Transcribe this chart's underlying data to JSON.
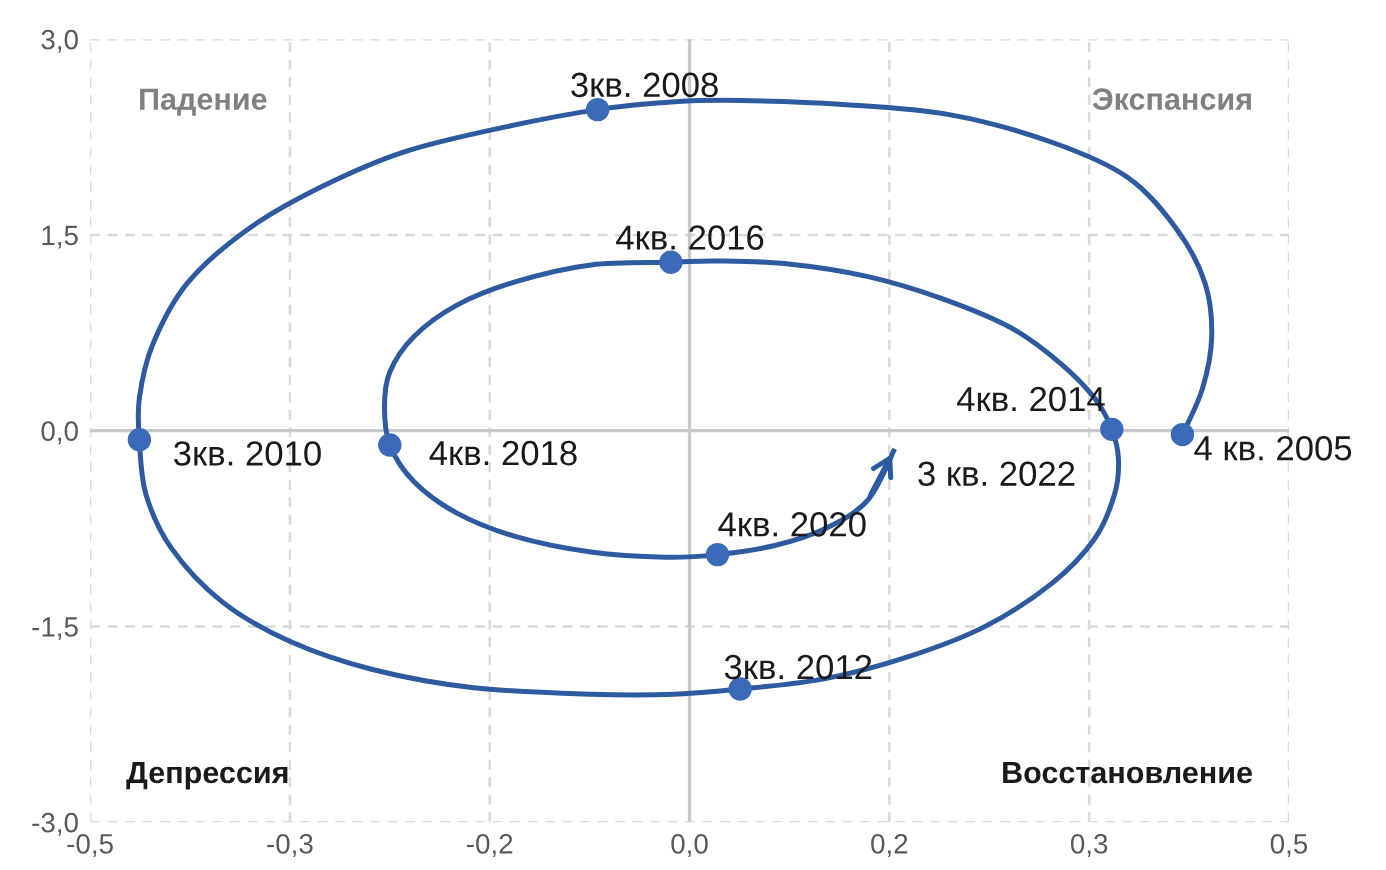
{
  "chart_data": {
    "type": "line",
    "xlim": [
      -0.45,
      0.45
    ],
    "ylim": [
      -3.0,
      3.0
    ],
    "xticks": [
      {
        "value": -0.45,
        "label": "-0,5"
      },
      {
        "value": -0.3,
        "label": "-0,3"
      },
      {
        "value": -0.15,
        "label": "-0,2"
      },
      {
        "value": 0,
        "label": "0,0"
      },
      {
        "value": 0.15,
        "label": "0,2"
      },
      {
        "value": 0.3,
        "label": "0,3"
      },
      {
        "value": 0.45,
        "label": "0,5"
      }
    ],
    "yticks": [
      {
        "value": -3,
        "label": "-3,0"
      },
      {
        "value": -1.5,
        "label": "-1,5"
      },
      {
        "value": 0,
        "label": "0,0"
      },
      {
        "value": 1.5,
        "label": "1,5"
      },
      {
        "value": 3,
        "label": "3,0"
      }
    ],
    "grid": true,
    "line_style": "dashed",
    "series": [
      {
        "type": "line",
        "color": "#2e5aa0",
        "marker": "none",
        "line_style": "solid",
        "x": [
          0.37,
          0.385,
          0.392,
          0.387,
          0.366,
          0.329,
          0.272,
          0.196,
          0.115,
          0.039,
          -0.011,
          -0.069,
          -0.137,
          -0.213,
          -0.276,
          -0.332,
          -0.377,
          -0.403,
          -0.413,
          -0.413,
          -0.408,
          -0.389,
          -0.351,
          -0.301,
          -0.238,
          -0.162,
          -0.074,
          -0.011,
          0.038,
          0.102,
          0.165,
          0.222,
          0.272,
          0.304,
          0.319,
          0.322,
          0.317,
          0.304,
          0.278,
          0.241,
          0.19,
          0.134,
          0.071,
          0.02,
          -0.014,
          -0.074,
          -0.131,
          -0.175,
          -0.207,
          -0.225,
          -0.229,
          -0.225,
          -0.207,
          -0.175,
          -0.131,
          -0.074,
          -0.018,
          0.021,
          0.064,
          0.102,
          0.134,
          0.154
        ],
        "values": [
          -0.03,
          0.32,
          0.72,
          1.13,
          1.54,
          1.94,
          2.21,
          2.42,
          2.5,
          2.53,
          2.52,
          2.46,
          2.33,
          2.14,
          1.87,
          1.54,
          1.13,
          0.66,
          0.25,
          -0.07,
          -0.49,
          -0.9,
          -1.31,
          -1.61,
          -1.83,
          -1.97,
          -2.02,
          -2.02,
          -1.98,
          -1.9,
          -1.73,
          -1.5,
          -1.17,
          -0.83,
          -0.49,
          -0.22,
          0.01,
          0.25,
          0.52,
          0.79,
          1.01,
          1.18,
          1.28,
          1.3,
          1.29,
          1.27,
          1.14,
          0.96,
          0.72,
          0.45,
          0.18,
          -0.11,
          -0.39,
          -0.63,
          -0.81,
          -0.93,
          -0.97,
          -0.95,
          -0.88,
          -0.75,
          -0.53,
          -0.14
        ]
      },
      {
        "type": "scatter",
        "color": "#3a6ab8",
        "marker": "circle",
        "x": [
          0.37,
          -0.069,
          -0.413,
          0.038,
          0.317,
          -0.014,
          -0.225,
          0.021
        ],
        "values": [
          -0.03,
          2.46,
          -0.07,
          -1.98,
          0.01,
          1.29,
          -0.11,
          -0.95
        ]
      }
    ],
    "annotations": [
      {
        "text": "4 кв. 2005",
        "x": 0.37,
        "y": -0.03
      },
      {
        "text": "3кв. 2008",
        "x": -0.069,
        "y": 2.46
      },
      {
        "text": "3кв. 2010",
        "x": -0.413,
        "y": -0.07
      },
      {
        "text": "3кв. 2012",
        "x": 0.038,
        "y": -1.98
      },
      {
        "text": "4кв. 2014",
        "x": 0.317,
        "y": 0.01
      },
      {
        "text": "4кв. 2016",
        "x": -0.014,
        "y": 1.29
      },
      {
        "text": "4кв. 2018",
        "x": -0.225,
        "y": -0.11
      },
      {
        "text": "4кв. 2020",
        "x": 0.021,
        "y": -0.95
      },
      {
        "text": "3 кв. 2022",
        "x": 0.154,
        "y": -0.14
      },
      "Падение",
      "Экспансия",
      "Депрессия",
      "Восстановление"
    ]
  }
}
